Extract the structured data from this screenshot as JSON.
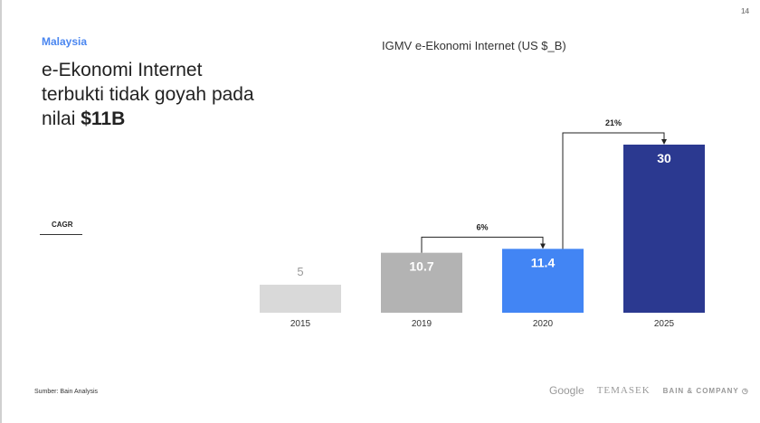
{
  "page_number": "14",
  "country": "Malaysia",
  "headline": {
    "text": "e-Ekonomi Internet terbukti tidak goyah pada nilai ",
    "bold": "$11B"
  },
  "cagr_label": "CAGR",
  "source": "Sumber: Bain Analysis",
  "logos": [
    "Google",
    "TEMASEK",
    "BAIN & COMPANY"
  ],
  "colors": {
    "2015": "#d9d9d9",
    "2019": "#b3b3b3",
    "2020": "#4285f4",
    "2025": "#2b3990"
  },
  "chart_data": {
    "type": "bar",
    "title": "IGMV e-Ekonomi Internet (US $_B)",
    "categories": [
      "2015",
      "2019",
      "2020",
      "2025"
    ],
    "values": [
      5,
      10.7,
      11.4,
      30
    ],
    "labels": [
      "5",
      "10.7",
      "11.4",
      "30"
    ],
    "ylim": [
      0,
      30
    ],
    "annotations": [
      {
        "from": "2019",
        "to": "2020",
        "label": "6%"
      },
      {
        "from": "2020",
        "to": "2025",
        "label": "21%"
      }
    ]
  }
}
